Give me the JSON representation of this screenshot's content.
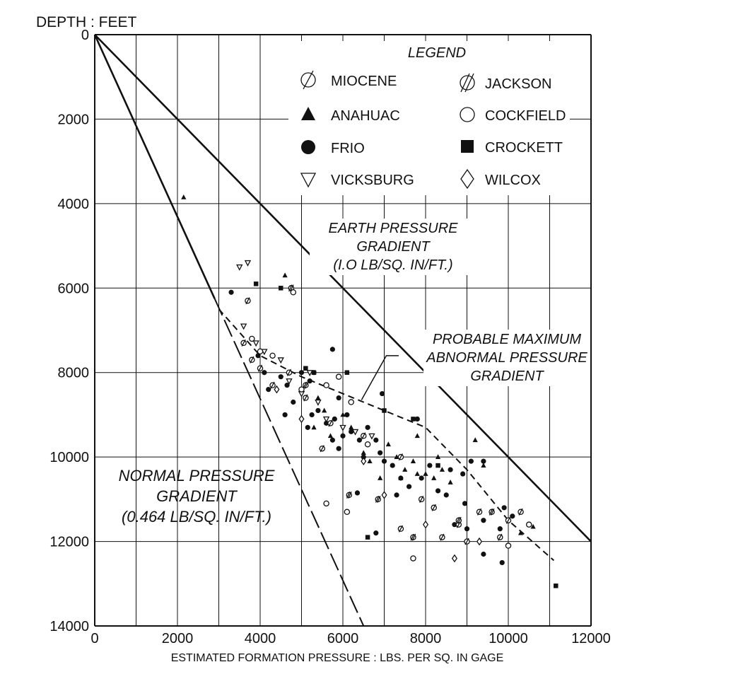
{
  "chart_data": {
    "type": "scatter",
    "ylabel": "DEPTH : FEET",
    "xlabel": "ESTIMATED FORMATION PRESSURE : LBS. PER SQ. IN GAGE",
    "xlim": [
      0,
      12000
    ],
    "ylim": [
      0,
      14000
    ],
    "y_inverted": true,
    "x_ticks": [
      0,
      2000,
      4000,
      6000,
      8000,
      10000,
      12000
    ],
    "y_ticks": [
      0,
      2000,
      4000,
      6000,
      8000,
      10000,
      12000,
      14000
    ],
    "grid": true,
    "legend": {
      "title": "LEGEND",
      "placement": "top-right",
      "entries": [
        {
          "label": "MIOCENE",
          "marker": "slashed-circle"
        },
        {
          "label": "ANAHUAC",
          "marker": "triangle"
        },
        {
          "label": "FRIO",
          "marker": "filled-circle"
        },
        {
          "label": "VICKSBURG",
          "marker": "open-triangle-down"
        },
        {
          "label": "JACKSON",
          "marker": "double-slashed-circle"
        },
        {
          "label": "COCKFIELD",
          "marker": "open-circle"
        },
        {
          "label": "CROCKETT",
          "marker": "filled-square"
        },
        {
          "label": "WILCOX",
          "marker": "open-diamond"
        }
      ]
    },
    "lines": [
      {
        "name": "EARTH PRESSURE GRADIENT",
        "style": "solid",
        "points": [
          [
            0,
            0
          ],
          [
            12000,
            12000
          ]
        ]
      },
      {
        "name": "NORMAL PRESSURE GRADIENT",
        "style": "solid",
        "points": [
          [
            0,
            0
          ],
          [
            2900,
            6250
          ]
        ]
      },
      {
        "name": "NORMAL PRESSURE GRADIENT (extension)",
        "style": "long-dash",
        "points": [
          [
            2900,
            6250
          ],
          [
            6500,
            14000
          ]
        ]
      },
      {
        "name": "PROBABLE MAXIMUM ABNORMAL PRESSURE GRADIENT",
        "style": "dashed",
        "points": [
          [
            3000,
            6500
          ],
          [
            4000,
            7600
          ],
          [
            5000,
            8100
          ],
          [
            6000,
            8500
          ],
          [
            7000,
            8900
          ],
          [
            8000,
            9300
          ],
          [
            9000,
            10300
          ],
          [
            10000,
            11500
          ],
          [
            11100,
            12450
          ]
        ]
      }
    ],
    "annotations": [
      {
        "lines": [
          "EARTH PRESSURE",
          "GRADIENT",
          "(I.O LB/SQ. IN/FT.)"
        ]
      },
      {
        "lines": [
          "PROBABLE MAXIMUM",
          "ABNORMAL PRESSURE",
          "GRADIENT"
        ]
      },
      {
        "lines": [
          "NORMAL PRESSURE",
          "GRADIENT",
          "(0.464 LB/SQ. IN/FT.)"
        ]
      }
    ],
    "series": [
      {
        "name": "FRIO",
        "marker": "filled-circle",
        "points": [
          [
            3300,
            6100
          ],
          [
            3950,
            7600
          ],
          [
            4100,
            8000
          ],
          [
            4200,
            8400
          ],
          [
            4500,
            8100
          ],
          [
            4650,
            8300
          ],
          [
            4800,
            8700
          ],
          [
            5000,
            8000
          ],
          [
            5100,
            8300
          ],
          [
            5200,
            8200
          ],
          [
            5300,
            8000
          ],
          [
            5250,
            9000
          ],
          [
            5400,
            8900
          ],
          [
            5600,
            9200
          ],
          [
            5750,
            7450
          ],
          [
            5900,
            8600
          ],
          [
            5800,
            9100
          ],
          [
            6000,
            9500
          ],
          [
            6100,
            9000
          ],
          [
            5750,
            9600
          ],
          [
            5900,
            9800
          ],
          [
            6200,
            9400
          ],
          [
            6400,
            9600
          ],
          [
            6600,
            9300
          ],
          [
            6500,
            10000
          ],
          [
            6800,
            9600
          ],
          [
            6900,
            9900
          ],
          [
            7000,
            10100
          ],
          [
            7200,
            10200
          ],
          [
            7400,
            10500
          ],
          [
            7300,
            10900
          ],
          [
            7600,
            10700
          ],
          [
            7800,
            9100
          ],
          [
            7900,
            10500
          ],
          [
            8100,
            10200
          ],
          [
            8300,
            10800
          ],
          [
            8600,
            10300
          ],
          [
            8500,
            10900
          ],
          [
            8900,
            10400
          ],
          [
            8950,
            11100
          ],
          [
            9100,
            10100
          ],
          [
            9400,
            10100
          ],
          [
            8700,
            11600
          ],
          [
            9000,
            11700
          ],
          [
            9400,
            11500
          ],
          [
            9800,
            11700
          ],
          [
            9900,
            11200
          ],
          [
            10100,
            11400
          ],
          [
            9400,
            12300
          ],
          [
            9850,
            12500
          ],
          [
            6350,
            10850
          ],
          [
            6800,
            11800
          ],
          [
            5150,
            9300
          ],
          [
            4600,
            9000
          ],
          [
            6950,
            8500
          ]
        ]
      },
      {
        "name": "ANAHUAC",
        "marker": "triangle",
        "points": [
          [
            2150,
            3850
          ],
          [
            4600,
            5700
          ],
          [
            5400,
            8600
          ],
          [
            5550,
            8900
          ],
          [
            5300,
            9300
          ],
          [
            5700,
            9500
          ],
          [
            6000,
            9000
          ],
          [
            6200,
            9300
          ],
          [
            6500,
            9900
          ],
          [
            6650,
            10100
          ],
          [
            6900,
            10500
          ],
          [
            7100,
            9700
          ],
          [
            7300,
            10000
          ],
          [
            7500,
            10300
          ],
          [
            7700,
            10100
          ],
          [
            7800,
            10400
          ],
          [
            8300,
            10000
          ],
          [
            8200,
            10500
          ],
          [
            8400,
            10300
          ],
          [
            8600,
            10600
          ],
          [
            9200,
            9600
          ],
          [
            9400,
            10200
          ],
          [
            10300,
            11800
          ],
          [
            10600,
            11650
          ],
          [
            8000,
            10400
          ],
          [
            7400,
            10500
          ],
          [
            7800,
            9500
          ]
        ]
      },
      {
        "name": "MIOCENE",
        "marker": "slashed-circle",
        "points": [
          [
            3700,
            6300
          ],
          [
            3600,
            7300
          ],
          [
            3800,
            7700
          ],
          [
            4000,
            7900
          ],
          [
            4300,
            8300
          ],
          [
            4700,
            8000
          ],
          [
            5100,
            8600
          ],
          [
            5500,
            9800
          ],
          [
            5700,
            9200
          ],
          [
            6500,
            9500
          ],
          [
            7400,
            10000
          ],
          [
            7900,
            11000
          ],
          [
            8200,
            11200
          ],
          [
            8400,
            11900
          ],
          [
            8800,
            11600
          ],
          [
            9000,
            12000
          ],
          [
            9300,
            11300
          ],
          [
            9800,
            11900
          ],
          [
            10000,
            11500
          ],
          [
            10300,
            11300
          ],
          [
            7400,
            11700
          ]
        ]
      },
      {
        "name": "VICKSBURG",
        "marker": "open-triangle-down",
        "points": [
          [
            3500,
            5500
          ],
          [
            3700,
            5400
          ],
          [
            3600,
            6900
          ],
          [
            3900,
            7300
          ],
          [
            4100,
            7500
          ],
          [
            4500,
            7700
          ],
          [
            4700,
            8200
          ],
          [
            5000,
            8500
          ],
          [
            5200,
            8000
          ],
          [
            5400,
            8700
          ],
          [
            5600,
            9100
          ],
          [
            6000,
            9300
          ],
          [
            6300,
            9400
          ],
          [
            6700,
            9500
          ]
        ]
      },
      {
        "name": "JACKSON",
        "marker": "double-slashed-circle",
        "points": [
          [
            4750,
            6000
          ],
          [
            5100,
            8300
          ],
          [
            6150,
            10900
          ],
          [
            6850,
            11000
          ],
          [
            7700,
            11900
          ],
          [
            8800,
            11500
          ],
          [
            9600,
            11300
          ]
        ]
      },
      {
        "name": "COCKFIELD",
        "marker": "open-circle",
        "points": [
          [
            3800,
            7200
          ],
          [
            4000,
            7500
          ],
          [
            4300,
            7600
          ],
          [
            4800,
            6100
          ],
          [
            5000,
            8400
          ],
          [
            5600,
            8300
          ],
          [
            5900,
            8100
          ],
          [
            6200,
            8700
          ],
          [
            6600,
            9700
          ],
          [
            5600,
            11100
          ],
          [
            6100,
            11300
          ],
          [
            7700,
            12400
          ],
          [
            10500,
            11600
          ],
          [
            10000,
            12100
          ]
        ]
      },
      {
        "name": "CROCKETT",
        "marker": "filled-square",
        "points": [
          [
            3900,
            5900
          ],
          [
            4500,
            6000
          ],
          [
            5100,
            7900
          ],
          [
            5300,
            8000
          ],
          [
            6100,
            8000
          ],
          [
            7000,
            8900
          ],
          [
            7700,
            9100
          ],
          [
            8300,
            10200
          ],
          [
            6600,
            11900
          ],
          [
            11150,
            13050
          ]
        ]
      },
      {
        "name": "WILCOX",
        "marker": "open-diamond",
        "points": [
          [
            4400,
            8400
          ],
          [
            5000,
            9100
          ],
          [
            6500,
            10100
          ],
          [
            7000,
            10900
          ],
          [
            8000,
            11600
          ],
          [
            8700,
            12400
          ],
          [
            9300,
            12000
          ]
        ]
      }
    ]
  }
}
